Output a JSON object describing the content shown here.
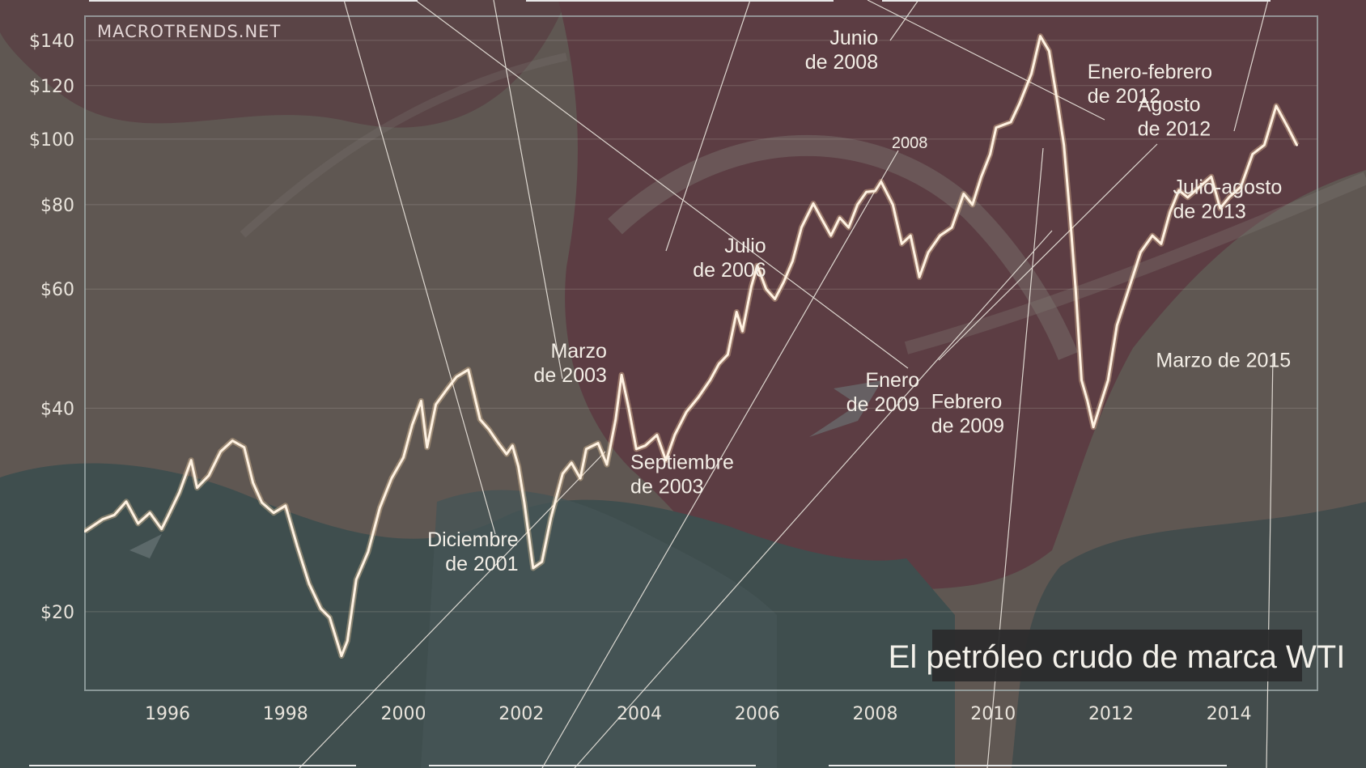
{
  "source_label": "MACROTRENDS.NET",
  "chart_data": {
    "type": "line",
    "title": "El petróleo crudo de marca WTI",
    "xlabel": "",
    "ylabel": "",
    "y_scale": "log",
    "ylim": [
      15.3,
      152
    ],
    "xlim": [
      1994.6,
      2015.5
    ],
    "y_ticks": [
      {
        "value": 20,
        "label": "$20"
      },
      {
        "value": 40,
        "label": "$40"
      },
      {
        "value": 60,
        "label": "$60"
      },
      {
        "value": 80,
        "label": "$80"
      },
      {
        "value": 100,
        "label": "$100"
      },
      {
        "value": 120,
        "label": "$120"
      },
      {
        "value": 140,
        "label": "$140"
      }
    ],
    "x_ticks": [
      {
        "value": 1996,
        "label": "1996"
      },
      {
        "value": 1998,
        "label": "1998"
      },
      {
        "value": 2000,
        "label": "2000"
      },
      {
        "value": 2002,
        "label": "2002"
      },
      {
        "value": 2004,
        "label": "2004"
      },
      {
        "value": 2006,
        "label": "2006"
      },
      {
        "value": 2008,
        "label": "2008"
      },
      {
        "value": 2010,
        "label": "2010"
      },
      {
        "value": 2012,
        "label": "2012"
      },
      {
        "value": 2014,
        "label": "2014"
      }
    ],
    "grid": true,
    "line_color": "#fff2e2",
    "series": [
      {
        "name": "",
        "points": [
          [
            1994.6,
            26.3
          ],
          [
            1994.9,
            27.4
          ],
          [
            1995.1,
            27.8
          ],
          [
            1995.3,
            29.1
          ],
          [
            1995.5,
            27.0
          ],
          [
            1995.7,
            28.0
          ],
          [
            1995.9,
            26.5
          ],
          [
            1996.0,
            27.6
          ],
          [
            1996.2,
            30.0
          ],
          [
            1996.4,
            33.5
          ],
          [
            1996.5,
            30.5
          ],
          [
            1996.7,
            31.8
          ],
          [
            1996.9,
            34.5
          ],
          [
            1997.1,
            35.8
          ],
          [
            1997.3,
            35.0
          ],
          [
            1997.45,
            31.0
          ],
          [
            1997.6,
            29.0
          ],
          [
            1997.8,
            28.0
          ],
          [
            1998.0,
            28.7
          ],
          [
            1998.2,
            25.0
          ],
          [
            1998.4,
            22.0
          ],
          [
            1998.6,
            20.2
          ],
          [
            1998.75,
            19.6
          ],
          [
            1998.95,
            17.2
          ],
          [
            1999.05,
            18.1
          ],
          [
            1999.2,
            22.3
          ],
          [
            1999.4,
            24.5
          ],
          [
            1999.6,
            28.5
          ],
          [
            1999.8,
            31.5
          ],
          [
            2000.0,
            33.8
          ],
          [
            2000.15,
            37.8
          ],
          [
            2000.3,
            41.0
          ],
          [
            2000.4,
            35.0
          ],
          [
            2000.55,
            40.5
          ],
          [
            2000.75,
            42.8
          ],
          [
            2000.9,
            44.5
          ],
          [
            2001.1,
            45.6
          ],
          [
            2001.3,
            38.5
          ],
          [
            2001.45,
            37.2
          ],
          [
            2001.6,
            35.6
          ],
          [
            2001.75,
            34.2
          ],
          [
            2001.85,
            35.2
          ],
          [
            2001.95,
            32.8
          ],
          [
            2002.05,
            29.0
          ],
          [
            2002.2,
            23.2
          ],
          [
            2002.35,
            23.7
          ],
          [
            2002.5,
            27.5
          ],
          [
            2002.7,
            32.0
          ],
          [
            2002.85,
            33.2
          ],
          [
            2003.0,
            31.5
          ],
          [
            2003.1,
            34.8
          ],
          [
            2003.3,
            35.5
          ],
          [
            2003.45,
            33.0
          ],
          [
            2003.6,
            38.5
          ],
          [
            2003.7,
            44.8
          ],
          [
            2003.82,
            40.0
          ],
          [
            2003.95,
            34.8
          ],
          [
            2004.1,
            35.2
          ],
          [
            2004.3,
            36.5
          ],
          [
            2004.45,
            33.5
          ],
          [
            2004.6,
            36.5
          ],
          [
            2004.8,
            39.5
          ],
          [
            2005.0,
            41.5
          ],
          [
            2005.2,
            44.0
          ],
          [
            2005.35,
            46.5
          ],
          [
            2005.5,
            48.0
          ],
          [
            2005.65,
            55.5
          ],
          [
            2005.75,
            52.0
          ],
          [
            2005.9,
            60.5
          ],
          [
            2006.0,
            65.0
          ],
          [
            2006.15,
            60.0
          ],
          [
            2006.3,
            58.0
          ],
          [
            2006.45,
            61.5
          ],
          [
            2006.6,
            66.0
          ],
          [
            2006.75,
            74.0
          ],
          [
            2006.95,
            80.3
          ],
          [
            2007.1,
            76.0
          ],
          [
            2007.25,
            72.0
          ],
          [
            2007.4,
            76.5
          ],
          [
            2007.55,
            74.0
          ],
          [
            2007.7,
            80.0
          ],
          [
            2007.85,
            83.5
          ],
          [
            2008.0,
            83.8
          ],
          [
            2008.1,
            86.5
          ],
          [
            2008.3,
            80.0
          ],
          [
            2008.45,
            70.0
          ],
          [
            2008.6,
            72.0
          ],
          [
            2008.75,
            62.5
          ],
          [
            2008.9,
            68.0
          ],
          [
            2009.1,
            72.0
          ],
          [
            2009.3,
            74.0
          ],
          [
            2009.5,
            83.0
          ],
          [
            2009.65,
            80.0
          ],
          [
            2009.8,
            88.0
          ],
          [
            2009.95,
            95.0
          ],
          [
            2010.05,
            104.0
          ],
          [
            2010.3,
            106.0
          ],
          [
            2010.45,
            113.0
          ],
          [
            2010.65,
            125.0
          ],
          [
            2010.8,
            142.0
          ],
          [
            2010.95,
            135.0
          ],
          [
            2011.1,
            112.0
          ],
          [
            2011.2,
            98.0
          ],
          [
            2011.3,
            78.0
          ],
          [
            2011.4,
            60.0
          ],
          [
            2011.5,
            44.0
          ],
          [
            2011.6,
            41.0
          ],
          [
            2011.7,
            37.5
          ],
          [
            2011.8,
            40.0
          ],
          [
            2011.95,
            44.0
          ],
          [
            2012.1,
            53.0
          ],
          [
            2012.3,
            60.0
          ],
          [
            2012.5,
            68.0
          ],
          [
            2012.7,
            72.0
          ],
          [
            2012.85,
            70.0
          ],
          [
            2013.0,
            78.0
          ],
          [
            2013.15,
            84.0
          ],
          [
            2013.3,
            82.0
          ],
          [
            2013.5,
            85.0
          ],
          [
            2013.7,
            88.0
          ],
          [
            2013.85,
            79.0
          ],
          [
            2014.0,
            82.0
          ],
          [
            2014.2,
            85.0
          ],
          [
            2014.4,
            95.0
          ],
          [
            2014.6,
            98.0
          ],
          [
            2014.8,
            112.0
          ],
          [
            2015.0,
            104.0
          ],
          [
            2015.15,
            98.0
          ]
        ]
      }
    ],
    "annotations": [
      {
        "text": [
          "Diciembre",
          "de 2001"
        ],
        "x": 2001.95,
        "y": 25.0,
        "anchor": "end"
      },
      {
        "text": [
          "Marzo",
          "de 2003"
        ],
        "x": 2003.45,
        "y": 47.5,
        "anchor": "end"
      },
      {
        "text": [
          "Septiembre",
          "de 2003"
        ],
        "x": 2003.85,
        "y": 32.5,
        "anchor": "start"
      },
      {
        "text": [
          "Julio",
          "de 2006"
        ],
        "x": 2006.15,
        "y": 68.0,
        "anchor": "end"
      },
      {
        "text": [
          "Junio",
          "de 2008"
        ],
        "x": 2008.05,
        "y": 138.0,
        "anchor": "end"
      },
      {
        "text": [
          "Enero",
          "de 2009"
        ],
        "x": 2008.75,
        "y": 43.0,
        "anchor": "end"
      },
      {
        "text": [
          "Febrero",
          "de 2009"
        ],
        "x": 2008.95,
        "y": 40.0,
        "anchor": "start"
      },
      {
        "text": [
          "Enero-febrero",
          "de 2012"
        ],
        "x": 2011.6,
        "y": 123.0,
        "anchor": "start"
      },
      {
        "text": [
          "Agosto",
          "de 2012"
        ],
        "x": 2012.45,
        "y": 110.0,
        "anchor": "start"
      },
      {
        "text": [
          "Julio-agosto",
          "de 2013"
        ],
        "x": 2013.05,
        "y": 83.0,
        "anchor": "start"
      },
      {
        "text": [
          "Marzo de 2015"
        ],
        "x": 2015.05,
        "y": 46.0,
        "anchor": "end"
      },
      {
        "text": [
          "2008"
        ],
        "x": 2008.28,
        "y": 97.0,
        "anchor": "start",
        "size": "small"
      }
    ]
  }
}
